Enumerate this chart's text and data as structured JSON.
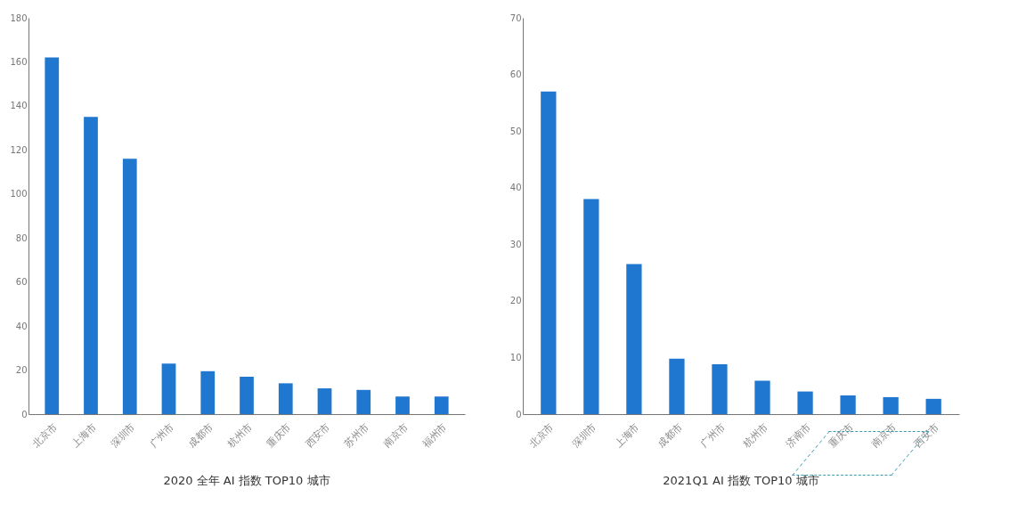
{
  "chart_data": [
    {
      "type": "bar",
      "title": "2020 全年 AI 指数 TOP10 城市",
      "categories": [
        "北京市",
        "上海市",
        "深圳市",
        "广州市",
        "成都市",
        "杭州市",
        "重庆市",
        "西安市",
        "苏州市",
        "南京市",
        "福州市"
      ],
      "values": [
        162,
        135,
        116,
        23,
        19.5,
        17,
        14,
        11.7,
        11,
        8,
        8
      ],
      "color": "#1f77d0",
      "ylim": [
        0,
        180
      ],
      "yticks": [
        0,
        20,
        40,
        60,
        80,
        100,
        120,
        140,
        160,
        180
      ],
      "grid": false
    },
    {
      "type": "bar",
      "title": "2021Q1 AI 指数 TOP10 城市",
      "categories": [
        "北京市",
        "深圳市",
        "上海市",
        "成都市",
        "广州市",
        "杭州市",
        "济南市",
        "重庆市",
        "南京市",
        "西安市"
      ],
      "values": [
        57,
        38,
        26.5,
        9.8,
        8.8,
        5.9,
        4,
        3.3,
        3,
        2.7
      ],
      "color": "#1f77d0",
      "ylim": [
        0,
        70
      ],
      "yticks": [
        0,
        10,
        20,
        30,
        40,
        50,
        60,
        70
      ],
      "grid": false
    }
  ]
}
